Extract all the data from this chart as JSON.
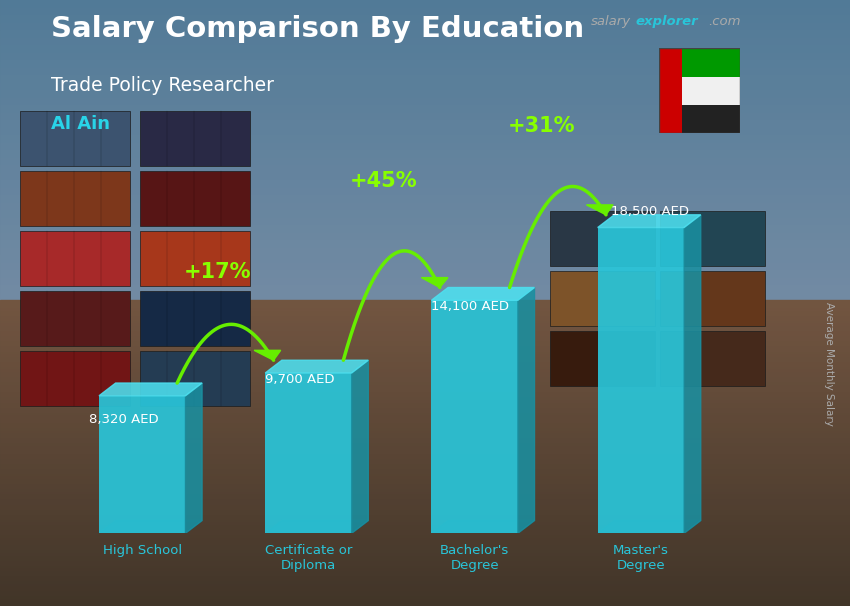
{
  "title_main": "Salary Comparison By Education",
  "subtitle": "Trade Policy Researcher",
  "location": "Al Ain",
  "ylabel": "Average Monthly Salary",
  "categories": [
    "High School",
    "Certificate or\nDiploma",
    "Bachelor's\nDegree",
    "Master's\nDegree"
  ],
  "values": [
    8320,
    9700,
    14100,
    18500
  ],
  "labels": [
    "8,320 AED",
    "9,700 AED",
    "14,100 AED",
    "18,500 AED"
  ],
  "pct_changes": [
    "+17%",
    "+45%",
    "+31%"
  ],
  "bar_face_color": "#29c5d9",
  "bar_right_color": "#1a8fa0",
  "bar_top_color": "#4de0f0",
  "bar_shadow_color": "#1a7a8a",
  "title_color": "#ffffff",
  "subtitle_color": "#ffffff",
  "location_color": "#29d4e8",
  "label_color": "#ffffff",
  "pct_color": "#88ff00",
  "arrow_color": "#66ee00",
  "xtick_color": "#29c5d9",
  "ylabel_color": "#aaaaaa",
  "salary_color": "#aaaaaa",
  "explorer_color": "#29c5d9",
  "com_color": "#aaaaaa",
  "bg_sky_color": "#7ab0c8",
  "bg_ground_color": "#8a7060",
  "figsize": [
    8.5,
    6.06
  ],
  "dpi": 100
}
